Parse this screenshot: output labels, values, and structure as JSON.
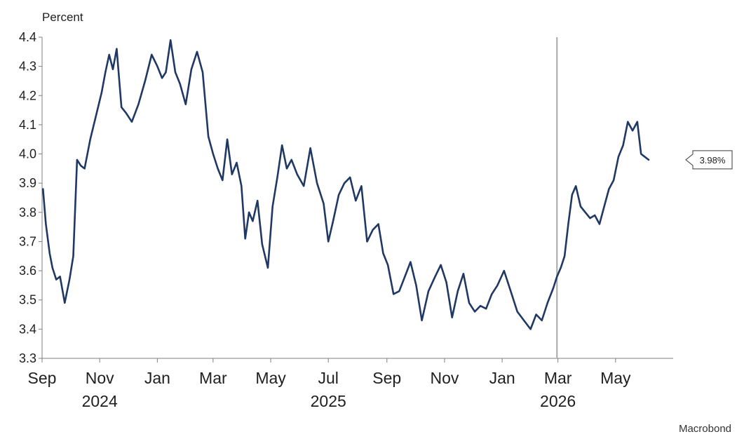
{
  "chart_data": {
    "type": "line",
    "ylabel": "Percent",
    "ylim": [
      3.3,
      4.4
    ],
    "yticks": [
      "4.4",
      "4.3",
      "4.2",
      "4.1",
      "4.0",
      "3.9",
      "3.8",
      "3.7",
      "3.6",
      "3.5",
      "3.4",
      "3.3"
    ],
    "xlim": [
      "2024-09-01",
      "2026-07-01"
    ],
    "xticks": [
      {
        "date": "2024-09-01",
        "label": "Sep"
      },
      {
        "date": "2024-11-01",
        "label": "Nov"
      },
      {
        "date": "2025-01-01",
        "label": "Jan"
      },
      {
        "date": "2025-03-01",
        "label": "Mar"
      },
      {
        "date": "2025-05-01",
        "label": "May"
      },
      {
        "date": "2025-07-01",
        "label": "Jul"
      },
      {
        "date": "2025-09-01",
        "label": "Sep"
      },
      {
        "date": "2025-11-01",
        "label": "Nov"
      },
      {
        "date": "2026-01-01",
        "label": "Jan"
      },
      {
        "date": "2026-03-01",
        "label": "Mar"
      },
      {
        "date": "2026-05-01",
        "label": "May"
      }
    ],
    "year_labels": [
      {
        "date": "2024-11-01",
        "label": "2024"
      },
      {
        "date": "2025-07-01",
        "label": "2025"
      },
      {
        "date": "2026-03-01",
        "label": "2026"
      }
    ],
    "reference_line": {
      "date": "2026-02-28",
      "color": "#a8a8a8"
    },
    "grid": false,
    "source": "Macrobond",
    "callout": {
      "text": "3.98%",
      "value": 3.98
    },
    "colors": {
      "line": "#1f3864",
      "axis": "#7f7f7f"
    },
    "series": [
      {
        "x": [
          "2024-09-02",
          "2024-09-05",
          "2024-09-09",
          "2024-09-12",
          "2024-09-16",
          "2024-09-20",
          "2024-09-25",
          "2024-09-30",
          "2024-10-04",
          "2024-10-08",
          "2024-10-12",
          "2024-10-16",
          "2024-10-22",
          "2024-10-28",
          "2024-11-03",
          "2024-11-07",
          "2024-11-11",
          "2024-11-15",
          "2024-11-19",
          "2024-11-24",
          "2024-11-29",
          "2024-12-05",
          "2024-12-12",
          "2024-12-19",
          "2024-12-26",
          "2025-01-01",
          "2025-01-06",
          "2025-01-10",
          "2025-01-15",
          "2025-01-20",
          "2025-01-25",
          "2025-01-31",
          "2025-02-06",
          "2025-02-12",
          "2025-02-18",
          "2025-02-24",
          "2025-03-01",
          "2025-03-06",
          "2025-03-11",
          "2025-03-16",
          "2025-03-21",
          "2025-03-26",
          "2025-03-31",
          "2025-04-04",
          "2025-04-08",
          "2025-04-12",
          "2025-04-17",
          "2025-04-22",
          "2025-04-28",
          "2025-05-03",
          "2025-05-08",
          "2025-05-13",
          "2025-05-18",
          "2025-05-23",
          "2025-05-29",
          "2025-06-05",
          "2025-06-12",
          "2025-06-19",
          "2025-06-26",
          "2025-07-01",
          "2025-07-06",
          "2025-07-12",
          "2025-07-18",
          "2025-07-24",
          "2025-07-30",
          "2025-08-05",
          "2025-08-11",
          "2025-08-17",
          "2025-08-23",
          "2025-08-28",
          "2025-09-02",
          "2025-09-08",
          "2025-09-14",
          "2025-09-20",
          "2025-09-26",
          "2025-10-02",
          "2025-10-08",
          "2025-10-15",
          "2025-10-22",
          "2025-10-28",
          "2025-11-03",
          "2025-11-09",
          "2025-11-15",
          "2025-11-21",
          "2025-11-27",
          "2025-12-03",
          "2025-12-09",
          "2025-12-15",
          "2025-12-21",
          "2025-12-27",
          "2026-01-03",
          "2026-01-10",
          "2026-01-17",
          "2026-01-24",
          "2026-01-31",
          "2026-02-06",
          "2026-02-12",
          "2026-02-18",
          "2026-02-24",
          "2026-02-28",
          "2026-03-04",
          "2026-03-08",
          "2026-03-12",
          "2026-03-16",
          "2026-03-20",
          "2026-03-25",
          "2026-03-30",
          "2026-04-04",
          "2026-04-09",
          "2026-04-14",
          "2026-04-19",
          "2026-04-24",
          "2026-04-29",
          "2026-05-04",
          "2026-05-09",
          "2026-05-14",
          "2026-05-19",
          "2026-05-24",
          "2026-05-28",
          "2026-06-01",
          "2026-06-05"
        ],
        "values": [
          3.88,
          3.76,
          3.66,
          3.61,
          3.57,
          3.58,
          3.49,
          3.57,
          3.65,
          3.98,
          3.96,
          3.95,
          4.05,
          4.13,
          4.21,
          4.28,
          4.34,
          4.29,
          4.36,
          4.16,
          4.14,
          4.11,
          4.17,
          4.25,
          4.34,
          4.3,
          4.26,
          4.28,
          4.39,
          4.28,
          4.24,
          4.17,
          4.29,
          4.35,
          4.28,
          4.06,
          4.0,
          3.95,
          3.91,
          4.05,
          3.93,
          3.97,
          3.89,
          3.71,
          3.8,
          3.77,
          3.84,
          3.69,
          3.61,
          3.82,
          3.92,
          4.03,
          3.95,
          3.98,
          3.93,
          3.89,
          4.02,
          3.9,
          3.83,
          3.7,
          3.77,
          3.86,
          3.9,
          3.92,
          3.84,
          3.89,
          3.7,
          3.74,
          3.76,
          3.66,
          3.62,
          3.52,
          3.53,
          3.58,
          3.63,
          3.55,
          3.43,
          3.53,
          3.58,
          3.62,
          3.56,
          3.44,
          3.53,
          3.59,
          3.49,
          3.46,
          3.48,
          3.47,
          3.52,
          3.55,
          3.6,
          3.53,
          3.46,
          3.43,
          3.4,
          3.45,
          3.43,
          3.49,
          3.54,
          3.58,
          3.61,
          3.65,
          3.76,
          3.86,
          3.89,
          3.82,
          3.8,
          3.78,
          3.79,
          3.76,
          3.82,
          3.88,
          3.91,
          3.99,
          4.03,
          4.11,
          4.08,
          4.11,
          4.0,
          3.99,
          3.98
        ]
      }
    ]
  }
}
